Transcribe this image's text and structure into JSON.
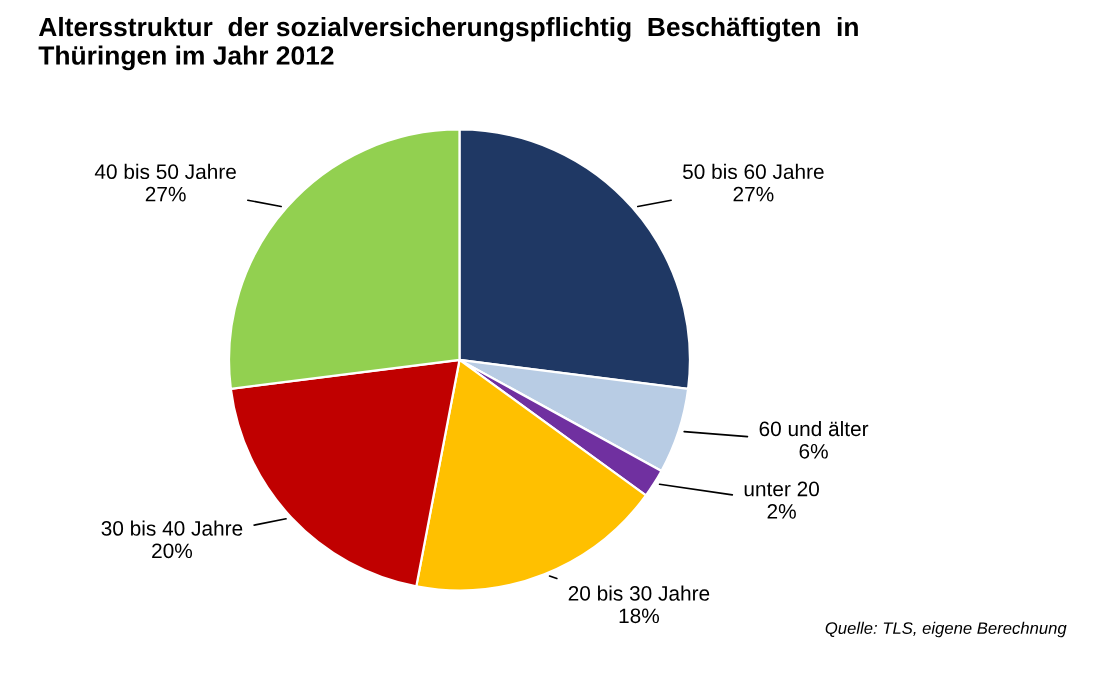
{
  "chart_data": {
    "type": "pie",
    "title": "Altersstruktur  der sozialversicherungspflichtig  Beschäftigten  in\nThüringen im Jahr 2012",
    "categories": [
      "50 bis 60 Jahre",
      "60 und älter",
      "unter 20",
      "20 bis 30 Jahre",
      "30 bis 40 Jahre",
      "40 bis 50 Jahre"
    ],
    "values": [
      27,
      6,
      2,
      18,
      20,
      27
    ],
    "value_labels": [
      "27%",
      "6%",
      "2%",
      "18%",
      "20%",
      "27%"
    ],
    "colors": [
      "#1f3864",
      "#b8cce4",
      "#7030a0",
      "#ffc000",
      "#c00000",
      "#92d050"
    ],
    "annotations": [
      "Quelle: TLS, eigene Berechnung"
    ]
  }
}
